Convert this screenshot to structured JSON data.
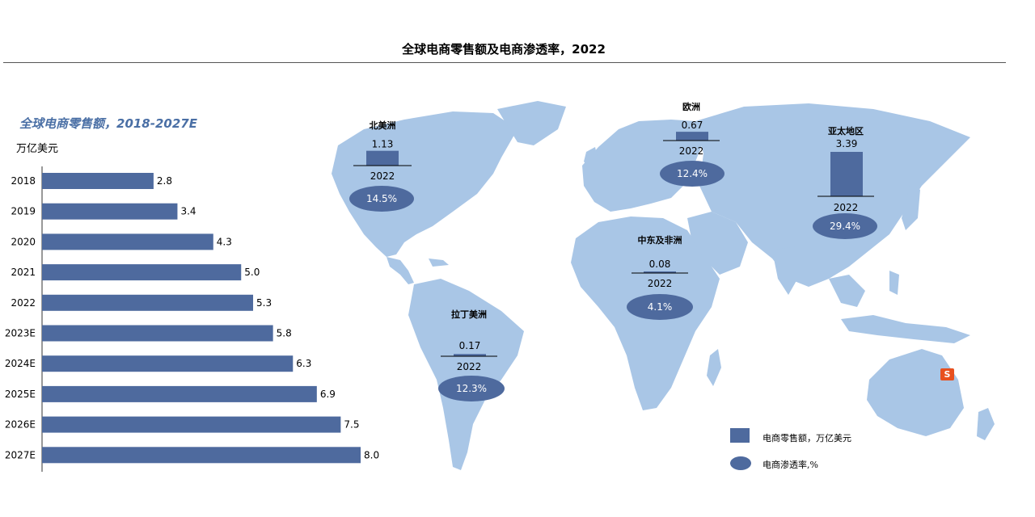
{
  "header": {
    "title": "全球电商零售额及电商渗透率，2022"
  },
  "left_chart": {
    "subtitle": "全球电商零售额，2018-2027E",
    "unit": "万亿美元"
  },
  "chart_data": [
    {
      "type": "bar",
      "orientation": "horizontal",
      "title": "全球电商零售额，2018-2027E",
      "ylabel": "万亿美元",
      "categories": [
        "2018",
        "2019",
        "2020",
        "2021",
        "2022",
        "2023E",
        "2024E",
        "2025E",
        "2026E",
        "2027E"
      ],
      "values": [
        2.8,
        3.4,
        4.3,
        5.0,
        5.3,
        5.8,
        6.3,
        6.9,
        7.5,
        8.0
      ],
      "value_labels": [
        "2.8",
        "3.4",
        "4.3",
        "5.0",
        "5.3",
        "5.8",
        "6.3",
        "6.9",
        "7.5",
        "8.0"
      ],
      "xlim": [
        0,
        8.0
      ],
      "color": "#4e6a9e"
    },
    {
      "type": "bar",
      "title": "全球电商零售额及电商渗透率，2022",
      "year_label": "2022",
      "regions": [
        {
          "name": "北美洲",
          "value": 1.13,
          "value_label": "1.13",
          "penetration": "14.5%"
        },
        {
          "name": "欧洲",
          "value": 0.67,
          "value_label": "0.67",
          "penetration": "12.4%"
        },
        {
          "name": "亚太地区",
          "value": 3.39,
          "value_label": "3.39",
          "penetration": "29.4%"
        },
        {
          "name": "中东及非洲",
          "value": 0.08,
          "value_label": "0.08",
          "penetration": "4.1%"
        },
        {
          "name": "拉丁美洲",
          "value": 0.17,
          "value_label": "0.17",
          "penetration": "12.3%"
        }
      ],
      "legend": [
        {
          "label": "电商零售额，万亿美元",
          "shape": "rect"
        },
        {
          "label": "电商渗透率,%",
          "shape": "ellipse"
        }
      ],
      "colors": {
        "bar": "#4e6a9e",
        "map": "#a9c6e6",
        "text_on_ellipse": "#ffffff"
      }
    }
  ],
  "legend": {
    "sales": "电商零售额，万亿美元",
    "penetration": "电商渗透率,%"
  },
  "icon": {
    "name": "s-logo-icon",
    "glyph": "S"
  }
}
